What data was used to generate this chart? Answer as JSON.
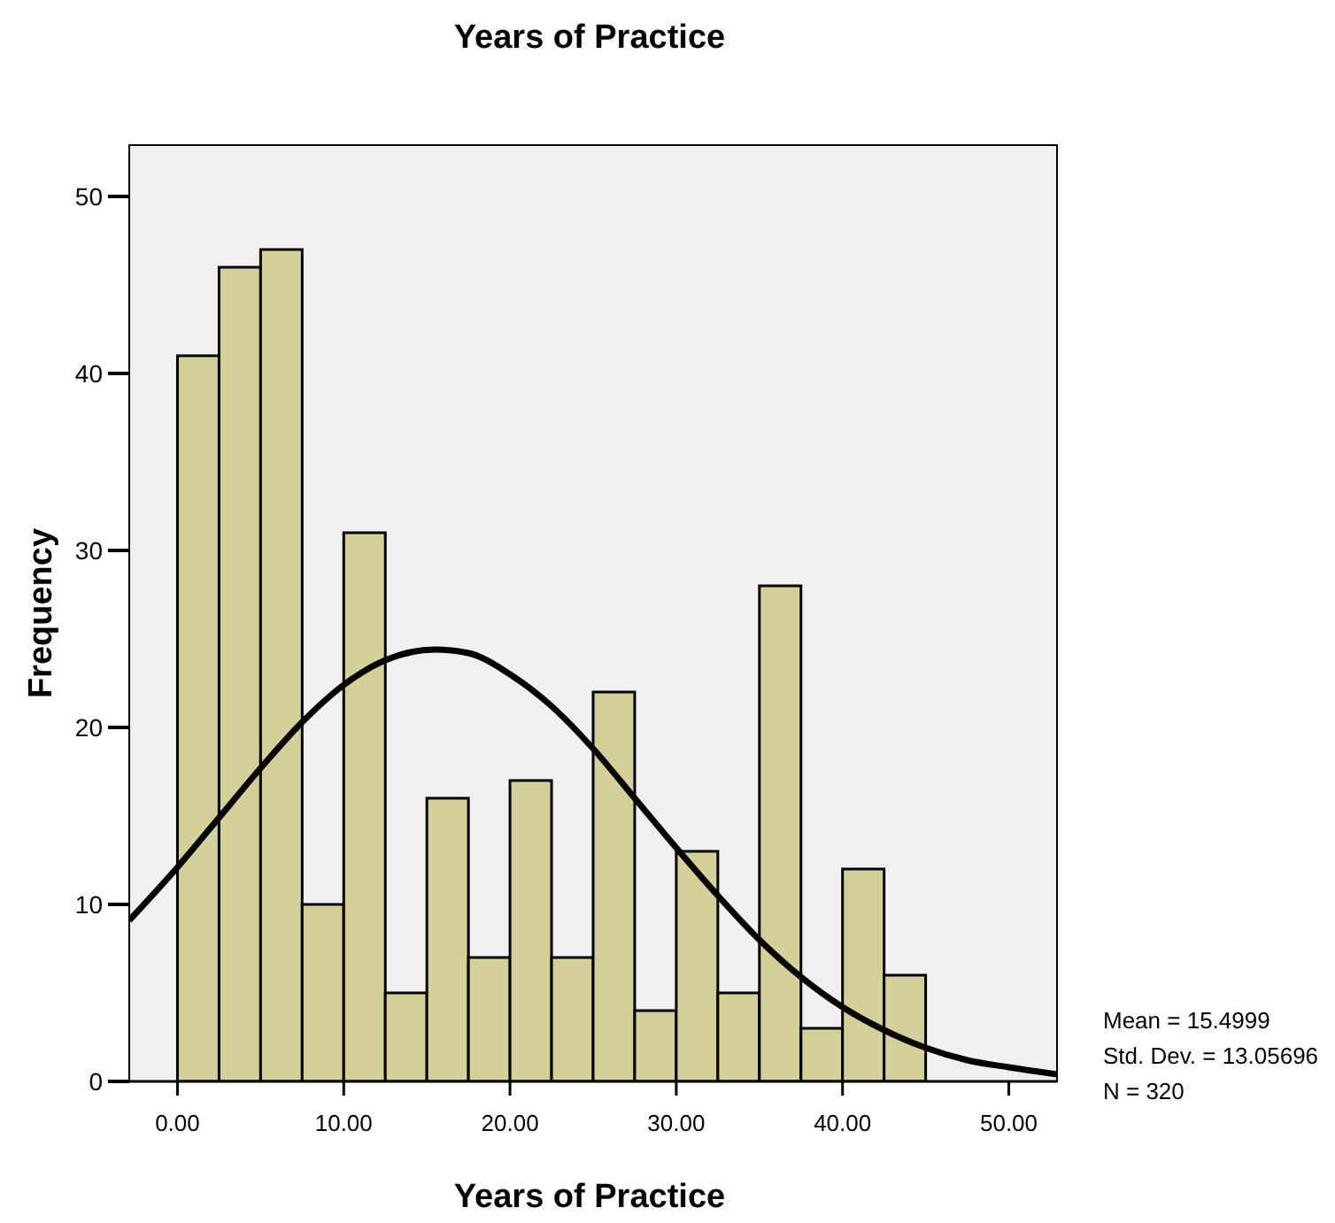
{
  "chart_data": {
    "type": "histogram",
    "title": "Years of Practice",
    "xlabel": "Years of Practice",
    "ylabel": "Frequency",
    "bins": [
      0,
      2.5,
      5,
      7.5,
      10,
      12.5,
      15,
      17.5,
      20,
      22.5,
      25,
      27.5,
      30,
      32.5,
      35,
      37.5,
      40,
      42.5,
      45
    ],
    "series": [
      {
        "color": "#d4d09a",
        "values": [
          41,
          46,
          47,
          10,
          31,
          5,
          16,
          7,
          17,
          7,
          22,
          4,
          13,
          5,
          28,
          3,
          12,
          6
        ]
      },
      {
        "type": "line",
        "color": "#000000",
        "x": [
          -2.9,
          0,
          2.5,
          5,
          7.5,
          10,
          12.5,
          15.5,
          17.5,
          20,
          22.5,
          25,
          27.5,
          30,
          32.5,
          35,
          37.5,
          40,
          42.5,
          45,
          47.5,
          50,
          52.9
        ],
        "values": [
          9.1,
          12.1,
          14.9,
          17.7,
          20.3,
          22.4,
          23.8,
          24.4,
          24.2,
          23.0,
          21.2,
          18.8,
          16.0,
          13.2,
          10.5,
          8.0,
          5.9,
          4.2,
          2.9,
          1.9,
          1.2,
          0.8,
          0.4
        ]
      }
    ],
    "xlim": [
      -2.9,
      52.9
    ],
    "ylim": [
      0,
      52.9
    ],
    "xticks": [
      {
        "value": 0,
        "label": "0.00"
      },
      {
        "value": 10,
        "label": "10.00"
      },
      {
        "value": 20,
        "label": "20.00"
      },
      {
        "value": 30,
        "label": "30.00"
      },
      {
        "value": 40,
        "label": "40.00"
      },
      {
        "value": 50,
        "label": "50.00"
      }
    ],
    "yticks": [
      0,
      10,
      20,
      30,
      40,
      50
    ],
    "annotations": [
      "Mean = 15.4999",
      "Std. Dev. = 13.05696",
      "N = 320"
    ]
  }
}
